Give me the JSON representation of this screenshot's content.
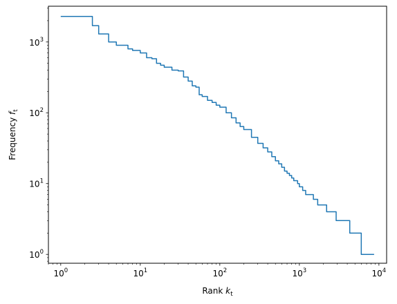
{
  "chart_data": {
    "type": "line",
    "title": "",
    "xlabel": {
      "main": "Rank ",
      "var": "k",
      "sub": "t"
    },
    "ylabel": {
      "main": "Frequency ",
      "var": "f",
      "sub": "t"
    },
    "xscale": "log",
    "yscale": "log",
    "xlim": [
      0.7,
      12500
    ],
    "ylim": [
      0.75,
      3200
    ],
    "grid": false,
    "legend": "none",
    "x_ticks": [
      {
        "value": 1,
        "base": "10",
        "exp": "0"
      },
      {
        "value": 10,
        "base": "10",
        "exp": "1"
      },
      {
        "value": 100,
        "base": "10",
        "exp": "2"
      },
      {
        "value": 1000,
        "base": "10",
        "exp": "3"
      },
      {
        "value": 10000,
        "base": "10",
        "exp": "4"
      }
    ],
    "y_ticks": [
      {
        "value": 1,
        "base": "10",
        "exp": "0"
      },
      {
        "value": 10,
        "base": "10",
        "exp": "1"
      },
      {
        "value": 100,
        "base": "10",
        "exp": "2"
      },
      {
        "value": 1000,
        "base": "10",
        "exp": "3"
      }
    ],
    "series": [
      {
        "color": "#1f77b4",
        "x": [
          1,
          2,
          2.5,
          3,
          4,
          5,
          6,
          7,
          8,
          10,
          12,
          14,
          16,
          18,
          20,
          25,
          30,
          35,
          40,
          45,
          50,
          55,
          60,
          70,
          80,
          90,
          100,
          120,
          140,
          160,
          180,
          200,
          250,
          300,
          350,
          400,
          450,
          500,
          550,
          600,
          650,
          700,
          750,
          800,
          850,
          900,
          950,
          1000,
          1100,
          1200,
          1350,
          1500,
          1700,
          1900,
          2200,
          2500,
          2900,
          3500,
          4300,
          5000,
          6000,
          7000,
          8700
        ],
        "y": [
          2300,
          2300,
          1700,
          1300,
          1000,
          900,
          900,
          800,
          760,
          700,
          600,
          580,
          500,
          470,
          440,
          400,
          390,
          320,
          280,
          240,
          230,
          180,
          170,
          150,
          140,
          128,
          120,
          100,
          85,
          72,
          64,
          58,
          45,
          37,
          32,
          28,
          24,
          21,
          19,
          17,
          15,
          14,
          13,
          12,
          11,
          11,
          10,
          9,
          8,
          7,
          7,
          6,
          5,
          5,
          4,
          4,
          3,
          3,
          2,
          2,
          1,
          1,
          1
        ],
        "step": "post"
      }
    ]
  }
}
